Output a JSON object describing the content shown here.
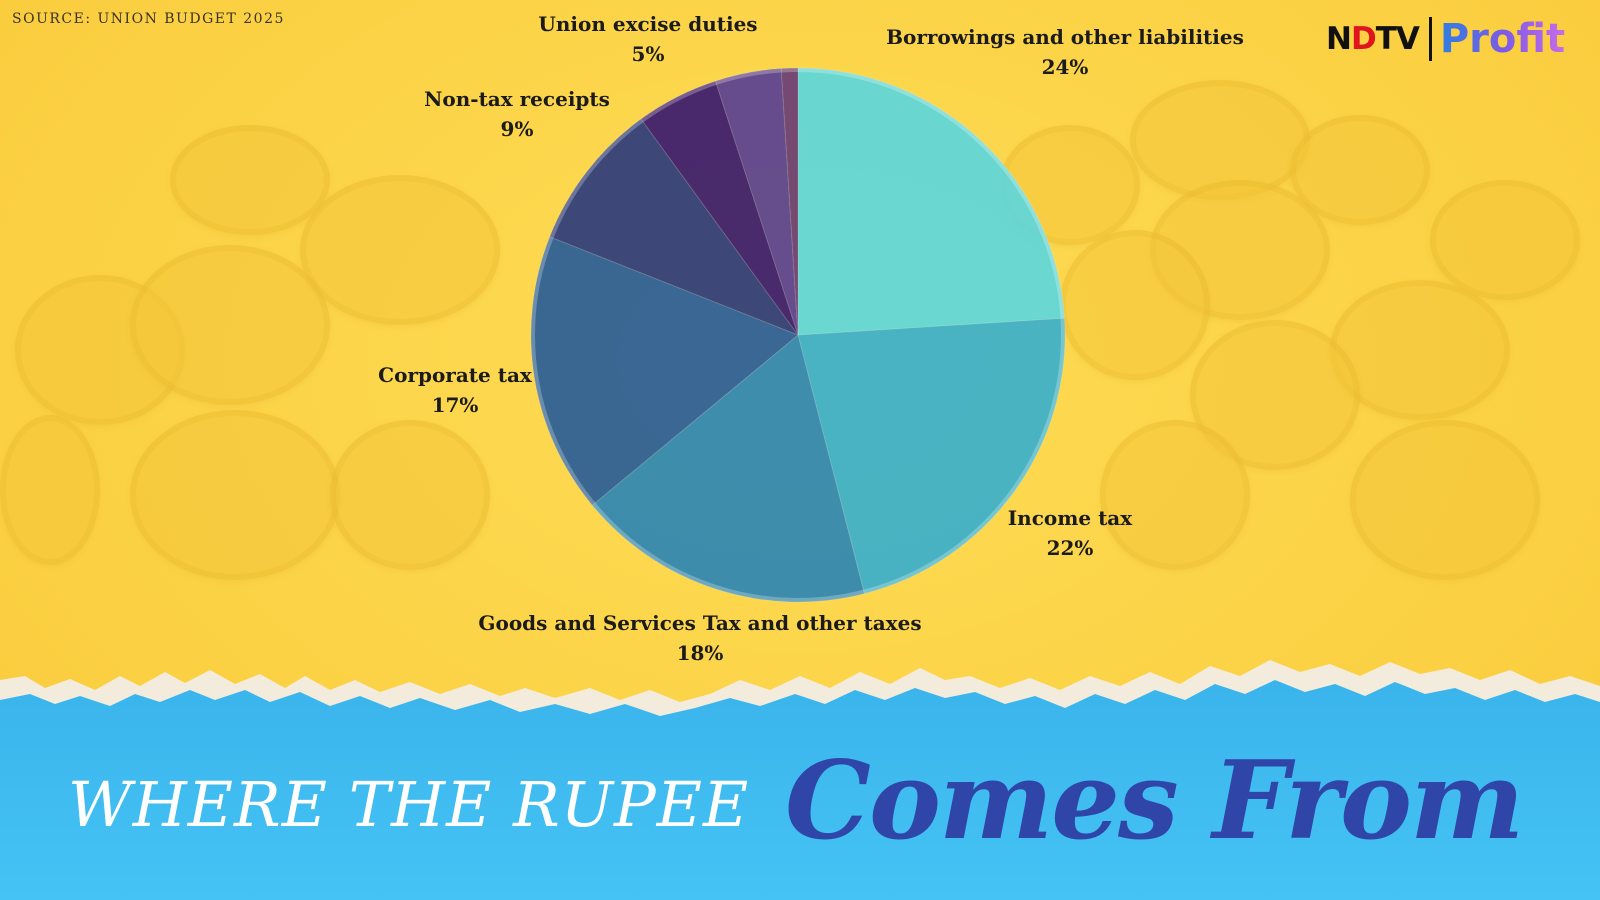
{
  "source": "SOURCE: UNION BUDGET 2025",
  "logo": {
    "ndtv_pre": "N",
    "ndtv_dot": "D",
    "ndtv_post": "TV",
    "profit": "Profit"
  },
  "title": {
    "part1": "WHERE THE RUPEE",
    "part2": "Comes From"
  },
  "colors": {
    "background": "#FDD74A",
    "banner": "#3EB8EE",
    "title_accent": "#2F46A8",
    "title_white": "#FFFFFF"
  },
  "chart_data": {
    "type": "pie",
    "slices": [
      {
        "label": "Borrowings and other liabilities",
        "pct_label": "24%",
        "value": 24,
        "color": "#5FD6DA"
      },
      {
        "label": "Income tax",
        "pct_label": "22%",
        "value": 22,
        "color": "#3BAFCB"
      },
      {
        "label": "Goods and Services Tax and other taxes",
        "pct_label": "18%",
        "value": 18,
        "color": "#2F86B3"
      },
      {
        "label": "Corporate tax",
        "pct_label": "17%",
        "value": 17,
        "color": "#2B5E98"
      },
      {
        "label": "Non-tax receipts",
        "pct_label": "9%",
        "value": 9,
        "color": "#2E3C7C"
      },
      {
        "label": "Union excise duties",
        "pct_label": "5%",
        "value": 5,
        "color": "#3B1C6E"
      },
      {
        "label": "",
        "pct_label": "",
        "value": 4,
        "color": "#5A4291"
      },
      {
        "label": "",
        "pct_label": "",
        "value": 1,
        "color": "#6A3E74"
      }
    ]
  }
}
